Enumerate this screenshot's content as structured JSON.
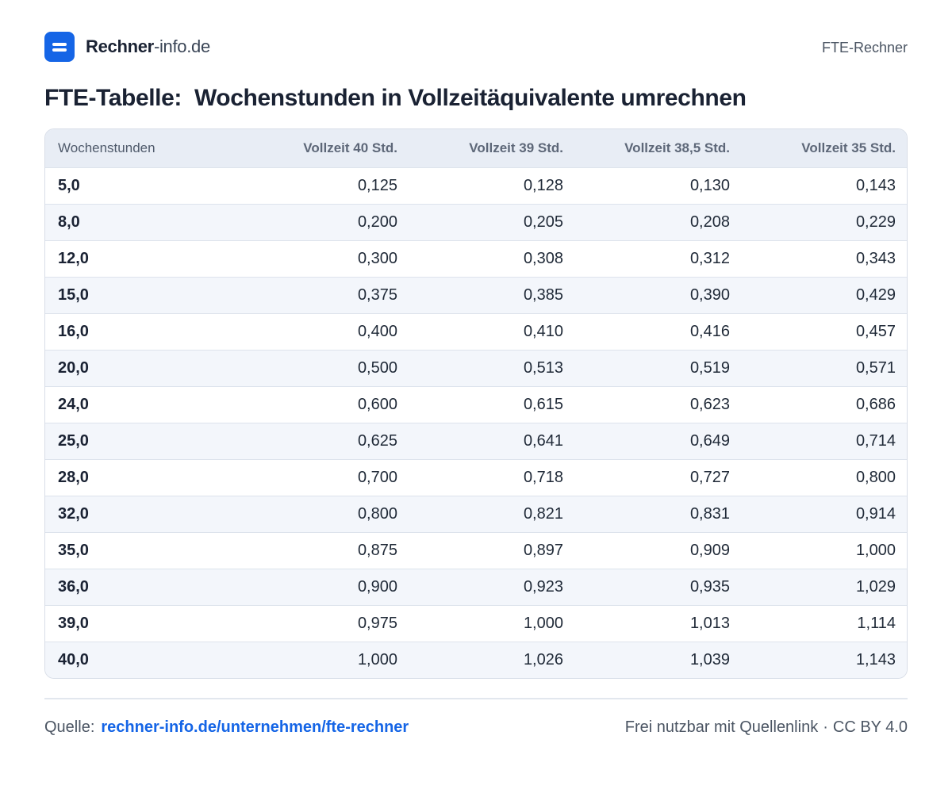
{
  "header": {
    "brand_main": "Rechner",
    "brand_sub": "-info.de",
    "right_label": "FTE-Rechner",
    "logo_icon": "menu-icon",
    "brand_color": "#1565e6"
  },
  "title": {
    "part1": "FTE-Tabelle:",
    "part2": "Wochenstunden in Vollzeitäquivalente umrechnen"
  },
  "table": {
    "columns": [
      "Wochenstunden",
      "Vollzeit 40 Std.",
      "Vollzeit 39 Std.",
      "Vollzeit 38,5 Std.",
      "Vollzeit 35 Std."
    ],
    "rows": [
      [
        "5,0",
        "0,125",
        "0,128",
        "0,130",
        "0,143"
      ],
      [
        "8,0",
        "0,200",
        "0,205",
        "0,208",
        "0,229"
      ],
      [
        "12,0",
        "0,300",
        "0,308",
        "0,312",
        "0,343"
      ],
      [
        "15,0",
        "0,375",
        "0,385",
        "0,390",
        "0,429"
      ],
      [
        "16,0",
        "0,400",
        "0,410",
        "0,416",
        "0,457"
      ],
      [
        "20,0",
        "0,500",
        "0,513",
        "0,519",
        "0,571"
      ],
      [
        "24,0",
        "0,600",
        "0,615",
        "0,623",
        "0,686"
      ],
      [
        "25,0",
        "0,625",
        "0,641",
        "0,649",
        "0,714"
      ],
      [
        "28,0",
        "0,700",
        "0,718",
        "0,727",
        "0,800"
      ],
      [
        "32,0",
        "0,800",
        "0,821",
        "0,831",
        "0,914"
      ],
      [
        "35,0",
        "0,875",
        "0,897",
        "0,909",
        "1,000"
      ],
      [
        "36,0",
        "0,900",
        "0,923",
        "0,935",
        "1,029"
      ],
      [
        "39,0",
        "0,975",
        "1,000",
        "1,013",
        "1,114"
      ],
      [
        "40,0",
        "1,000",
        "1,026",
        "1,039",
        "1,143"
      ]
    ]
  },
  "footer": {
    "source_label": "Quelle:",
    "source_link": "rechner-info.de/unternehmen/fte-rechner",
    "license_text": "Frei nutzbar mit Quellenlink",
    "separator": "·",
    "license": "CC BY 4.0"
  }
}
